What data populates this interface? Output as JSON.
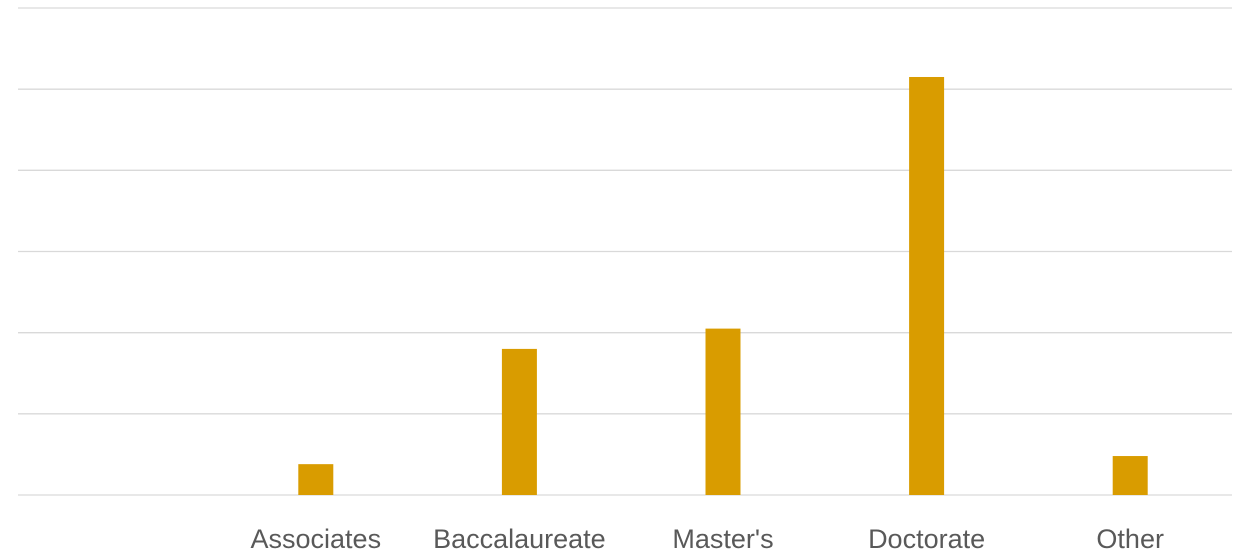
{
  "chart_data": {
    "type": "bar",
    "categories": [
      "Associates",
      "Baccalaureate",
      "Master's",
      "Doctorate",
      "Other"
    ],
    "values": [
      3.8,
      18,
      20.5,
      51.5,
      4.8
    ],
    "ylim": [
      0,
      60
    ],
    "gridline_count": 7,
    "grid": true,
    "legend": "none",
    "bar_color": "#D99C00",
    "gridline_color": "#D9D9D9",
    "label_color": "#595959"
  }
}
